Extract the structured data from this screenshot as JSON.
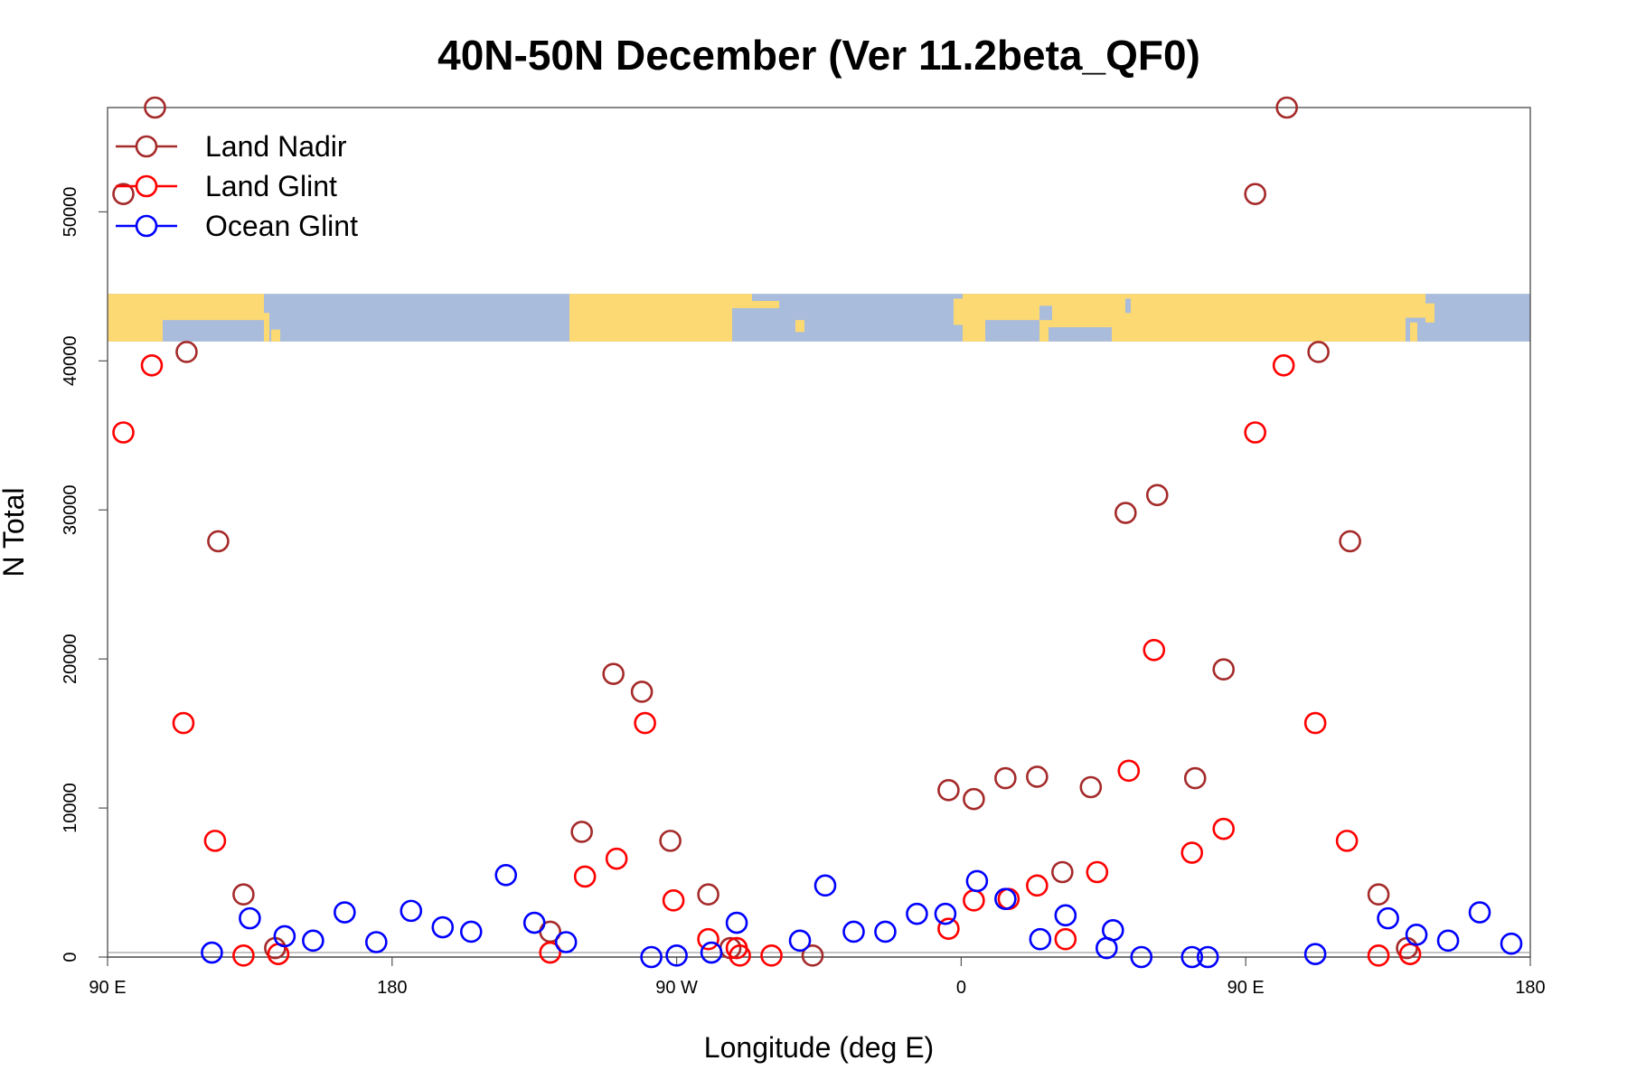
{
  "chart_data": {
    "type": "scatter",
    "title": "40N-50N December (Ver 11.2beta_QF0)",
    "xlabel": "Longitude (deg E)",
    "ylabel": "N Total",
    "xlim": [
      90,
      540
    ],
    "ylim": [
      0,
      57000
    ],
    "x_ticks": [
      {
        "value": 90,
        "label": "90 E"
      },
      {
        "value": 180,
        "label": "180"
      },
      {
        "value": 270,
        "label": "90 W"
      },
      {
        "value": 360,
        "label": "0"
      },
      {
        "value": 450,
        "label": "90 E"
      },
      {
        "value": 540,
        "label": "180"
      }
    ],
    "y_ticks": [
      {
        "value": 0,
        "label": "0"
      },
      {
        "value": 10000,
        "label": "10000"
      },
      {
        "value": 20000,
        "label": "20000"
      },
      {
        "value": 30000,
        "label": "30000"
      },
      {
        "value": 40000,
        "label": "40000"
      },
      {
        "value": 50000,
        "label": "50000"
      }
    ],
    "map_strip": {
      "description": "world land/ocean map strip for 40N-50N",
      "y_range": [
        41300,
        44500
      ],
      "land_color": "#fdd973",
      "ocean_color": "#a9bcdb"
    },
    "legend_position": "top-left",
    "series": [
      {
        "name": "Land Nadir",
        "color": "#a52a2a",
        "points": [
          [
            95,
            51200
          ],
          [
            105,
            57000
          ],
          [
            115,
            40600
          ],
          [
            125,
            27900
          ],
          [
            133,
            4200
          ],
          [
            143,
            600
          ],
          [
            240,
            8400
          ],
          [
            250,
            19000
          ],
          [
            259,
            17800
          ],
          [
            268,
            7800
          ],
          [
            280,
            4200
          ],
          [
            287,
            600
          ],
          [
            356,
            11200
          ],
          [
            364,
            10600
          ],
          [
            374,
            12000
          ],
          [
            384,
            12100
          ],
          [
            392,
            5700
          ],
          [
            401,
            11400
          ],
          [
            412,
            29800
          ],
          [
            422,
            31000
          ],
          [
            434,
            12000
          ],
          [
            443,
            19300
          ],
          [
            453,
            51200
          ],
          [
            463,
            57000
          ],
          [
            473,
            40600
          ],
          [
            483,
            27900
          ],
          [
            492,
            4200
          ],
          [
            501,
            600
          ],
          [
            230,
            1700
          ],
          [
            313,
            100
          ]
        ]
      },
      {
        "name": "Land Glint",
        "color": "#ff0000",
        "points": [
          [
            95,
            35200
          ],
          [
            104,
            39700
          ],
          [
            114,
            15700
          ],
          [
            124,
            7800
          ],
          [
            133,
            100
          ],
          [
            144,
            200
          ],
          [
            241,
            5400
          ],
          [
            251,
            6600
          ],
          [
            260,
            15700
          ],
          [
            269,
            3800
          ],
          [
            280,
            1200
          ],
          [
            289,
            600
          ],
          [
            290,
            100
          ],
          [
            300,
            100
          ],
          [
            356,
            1900
          ],
          [
            364,
            3800
          ],
          [
            375,
            3900
          ],
          [
            384,
            4800
          ],
          [
            393,
            1200
          ],
          [
            403,
            5700
          ],
          [
            413,
            12500
          ],
          [
            421,
            20600
          ],
          [
            433,
            7000
          ],
          [
            443,
            8600
          ],
          [
            453,
            35200
          ],
          [
            462,
            39700
          ],
          [
            472,
            15700
          ],
          [
            482,
            7800
          ],
          [
            492,
            100
          ],
          [
            502,
            200
          ],
          [
            230,
            300
          ]
        ]
      },
      {
        "name": "Ocean Glint",
        "color": "#0000ff",
        "points": [
          [
            123,
            300
          ],
          [
            135,
            2600
          ],
          [
            146,
            1400
          ],
          [
            155,
            1100
          ],
          [
            165,
            3000
          ],
          [
            175,
            1000
          ],
          [
            186,
            3100
          ],
          [
            196,
            2000
          ],
          [
            205,
            1700
          ],
          [
            216,
            5500
          ],
          [
            225,
            2300
          ],
          [
            235,
            1000
          ],
          [
            262,
            0
          ],
          [
            270,
            100
          ],
          [
            281,
            300
          ],
          [
            289,
            2300
          ],
          [
            309,
            1100
          ],
          [
            317,
            4800
          ],
          [
            326,
            1700
          ],
          [
            336,
            1700
          ],
          [
            346,
            2900
          ],
          [
            355,
            2900
          ],
          [
            365,
            5100
          ],
          [
            374,
            3900
          ],
          [
            385,
            1200
          ],
          [
            393,
            2800
          ],
          [
            406,
            600
          ],
          [
            408,
            1800
          ],
          [
            417,
            0
          ],
          [
            433,
            0
          ],
          [
            438,
            0
          ],
          [
            472,
            200
          ],
          [
            495,
            2600
          ],
          [
            504,
            1500
          ],
          [
            514,
            1100
          ],
          [
            524,
            3000
          ],
          [
            534,
            900
          ]
        ]
      }
    ]
  }
}
